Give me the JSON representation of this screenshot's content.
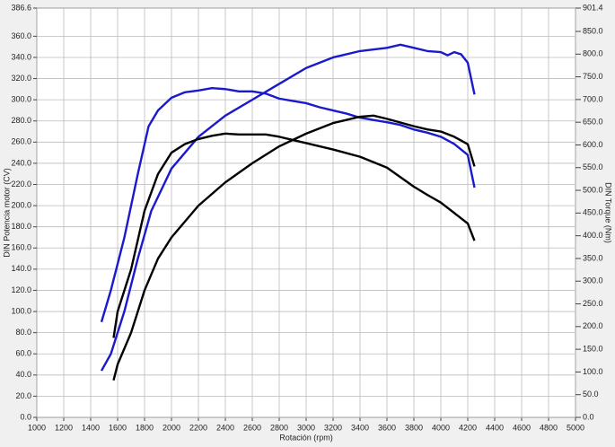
{
  "chart_data": {
    "type": "line",
    "xlabel": "Rotación (rpm)",
    "ylabel": "DIN Potencia motor (CV)",
    "y2label": "DIN Torque (Nm)",
    "xlim": [
      1000,
      5000
    ],
    "xticks": [
      1000,
      1200,
      1400,
      1600,
      1800,
      2000,
      2200,
      2400,
      2600,
      2800,
      3000,
      3200,
      3400,
      3600,
      3800,
      4000,
      4200,
      4400,
      4600,
      4800,
      5000
    ],
    "ylim": [
      0,
      386.6
    ],
    "yticks": [
      {
        "value": 0,
        "label": "0.0"
      },
      {
        "value": 20,
        "label": "20.0"
      },
      {
        "value": 40,
        "label": "40.0"
      },
      {
        "value": 60,
        "label": "60.0"
      },
      {
        "value": 80,
        "label": "80.0"
      },
      {
        "value": 100,
        "label": "100.0"
      },
      {
        "value": 120,
        "label": "120.0"
      },
      {
        "value": 140,
        "label": "140.0"
      },
      {
        "value": 160,
        "label": "160.0"
      },
      {
        "value": 180,
        "label": "180.0"
      },
      {
        "value": 200,
        "label": "200.0"
      },
      {
        "value": 220,
        "label": "220.0"
      },
      {
        "value": 240,
        "label": "240.0"
      },
      {
        "value": 260,
        "label": "260.0"
      },
      {
        "value": 280,
        "label": "280.0"
      },
      {
        "value": 300,
        "label": "300.0"
      },
      {
        "value": 320,
        "label": "320.0"
      },
      {
        "value": 340,
        "label": "340.0"
      },
      {
        "value": 360,
        "label": "360.0"
      },
      386.6
    ],
    "y2lim": [
      0,
      901.4
    ],
    "y2ticks": [
      {
        "value": 0,
        "label": "0.0"
      },
      {
        "value": 50,
        "label": "50.0"
      },
      {
        "value": 100,
        "label": "100.0"
      },
      {
        "value": 150,
        "label": "150.0"
      },
      {
        "value": 200,
        "label": "200.0"
      },
      {
        "value": 250,
        "label": "250.0"
      },
      {
        "value": 300,
        "label": "300.0"
      },
      {
        "value": 350,
        "label": "350.0"
      },
      {
        "value": 400,
        "label": "400.0"
      },
      {
        "value": 450,
        "label": "450.0"
      },
      {
        "value": 500,
        "label": "500.0"
      },
      {
        "value": 550,
        "label": "550.0"
      },
      {
        "value": 600,
        "label": "600.0"
      },
      {
        "value": 650,
        "label": "650.0"
      },
      {
        "value": 700,
        "label": "700.0"
      },
      {
        "value": 750,
        "label": "750.0"
      },
      {
        "value": 800,
        "label": "800.0"
      },
      {
        "value": 850,
        "label": "850.0"
      },
      901.4
    ],
    "grid": true,
    "series": [
      {
        "color": "#1a1acc",
        "axis": "y2",
        "x": [
          1480,
          1550,
          1650,
          1750,
          1830,
          1900,
          2000,
          2100,
          2200,
          2300,
          2400,
          2500,
          2600,
          2700,
          2800,
          2900,
          3000,
          3100,
          3200,
          3300,
          3400,
          3500,
          3600,
          3700,
          3800,
          3900,
          4000,
          4100,
          4200,
          4250
        ],
        "values": [
          210,
          280,
          396,
          536,
          641,
          676,
          704,
          716,
          720,
          725,
          723,
          718,
          718,
          713,
          702,
          697,
          692,
          683,
          676,
          669,
          660,
          655,
          650,
          644,
          634,
          627,
          618,
          602,
          578,
          506
        ]
      },
      {
        "color": "#1a1acc",
        "x": [
          1480,
          1550,
          1650,
          1750,
          1850,
          2000,
          2200,
          2400,
          2600,
          2800,
          3000,
          3200,
          3400,
          3600,
          3700,
          3800,
          3900,
          4000,
          4050,
          4100,
          4150,
          4200,
          4250
        ],
        "values": [
          44,
          60,
          100,
          150,
          195,
          235,
          265,
          285,
          300,
          315,
          330,
          340,
          346,
          349,
          352,
          349,
          346,
          345,
          342,
          345,
          343,
          335,
          305
        ]
      },
      {
        "color": "#000000",
        "axis": "y2",
        "x": [
          1570,
          1600,
          1700,
          1800,
          1900,
          2000,
          2100,
          2200,
          2300,
          2400,
          2500,
          2600,
          2700,
          2800,
          2900,
          3000,
          3200,
          3400,
          3600,
          3700,
          3800,
          3900,
          4000,
          4100,
          4200,
          4250
        ],
        "values": [
          175,
          233,
          326,
          455,
          536,
          583,
          602,
          613,
          620,
          625,
          623,
          623,
          623,
          618,
          611,
          604,
          590,
          574,
          550,
          529,
          508,
          490,
          473,
          450,
          427,
          389
        ]
      },
      {
        "color": "#000000",
        "x": [
          1570,
          1600,
          1700,
          1800,
          1900,
          2000,
          2200,
          2400,
          2600,
          2800,
          3000,
          3200,
          3400,
          3500,
          3600,
          3800,
          3900,
          4000,
          4100,
          4200,
          4250
        ],
        "values": [
          35,
          50,
          80,
          120,
          150,
          170,
          200,
          222,
          240,
          256,
          268,
          278,
          284,
          285,
          282,
          275,
          272,
          270,
          265,
          258,
          237
        ]
      }
    ]
  }
}
